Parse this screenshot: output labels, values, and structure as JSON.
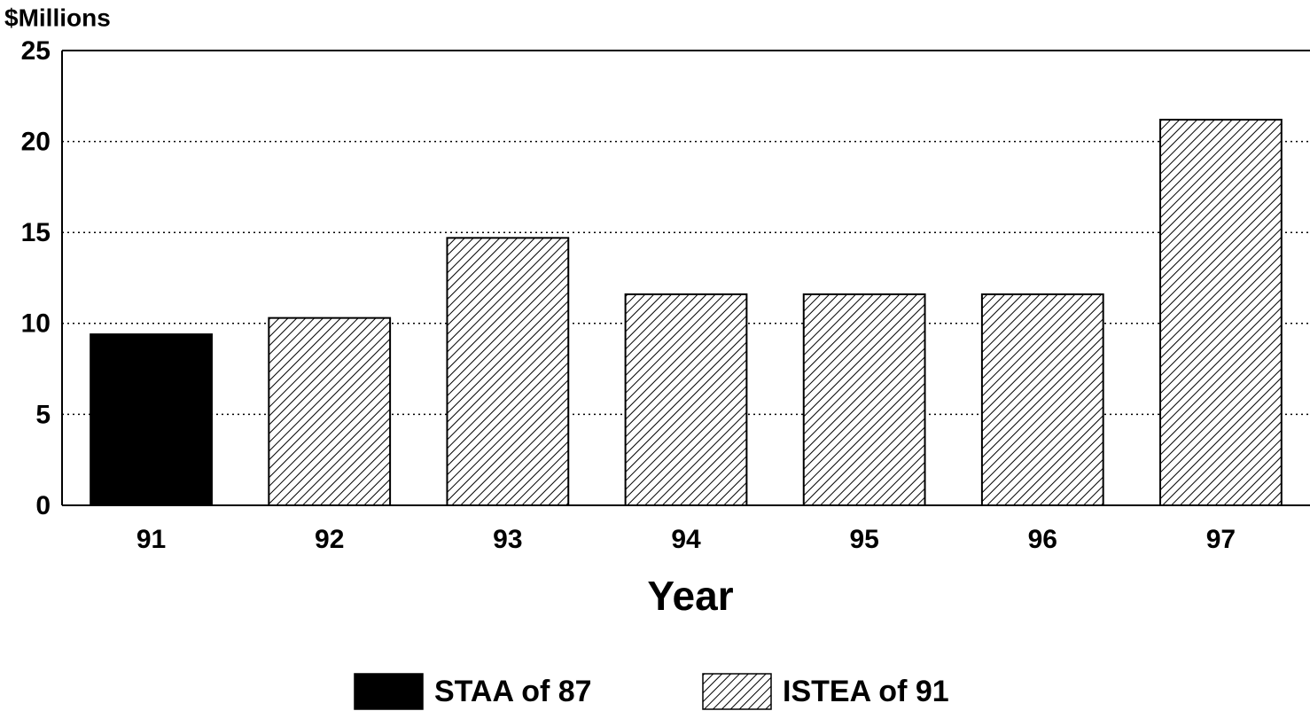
{
  "chart_data": {
    "type": "bar",
    "y_label": "$Millions",
    "x_label": "Year",
    "categories": [
      "91",
      "92",
      "93",
      "94",
      "95",
      "96",
      "97"
    ],
    "series": [
      {
        "name": "STAA of 87",
        "color": "#000000",
        "pattern": "solid",
        "values": [
          9.4,
          null,
          null,
          null,
          null,
          null,
          null
        ]
      },
      {
        "name": "ISTEA of 91",
        "color": "#000000",
        "pattern": "hatch",
        "values": [
          null,
          10.3,
          14.7,
          11.6,
          11.6,
          11.6,
          21.2
        ]
      }
    ],
    "ylim": [
      0,
      25
    ],
    "yticks": [
      0,
      5,
      10,
      15,
      20,
      25
    ],
    "grid": true,
    "legend": "bottom"
  }
}
